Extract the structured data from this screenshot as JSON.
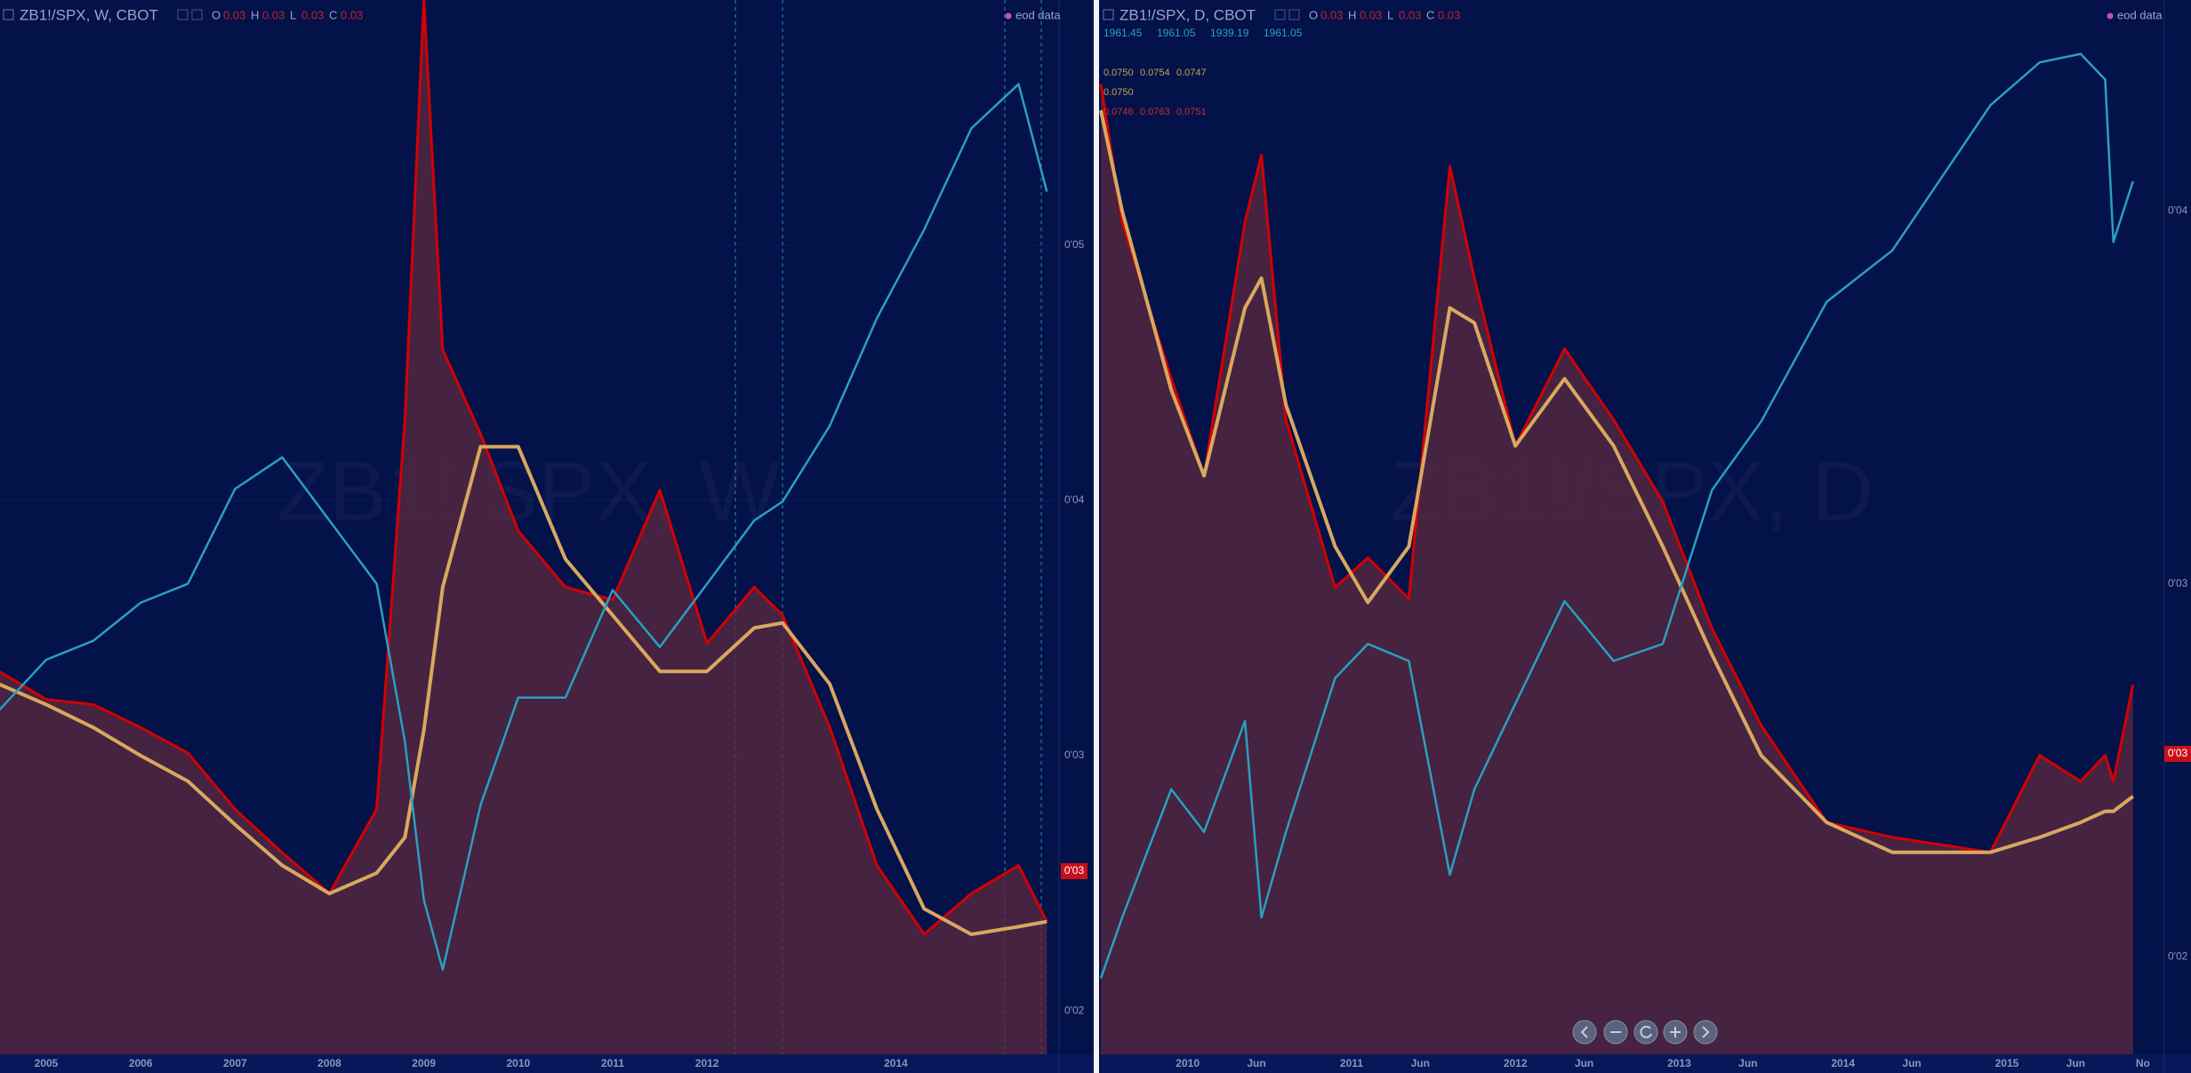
{
  "chart_data": [
    {
      "type": "line",
      "title": "ZB1!/SPX, W, CBOT",
      "watermark": "ZB1!/SPX, W",
      "source": "eod data",
      "ohlc_labels": [
        "O",
        "H",
        "L",
        "C"
      ],
      "ohlc_values": [
        0.03,
        0.03,
        0.03,
        0.03
      ],
      "last_label": "0'03",
      "x": [
        2004.5,
        2005,
        2005.5,
        2006,
        2006.5,
        2007,
        2007.5,
        2008,
        2008.5,
        2008.8,
        2009,
        2009.2,
        2009.6,
        2010,
        2010.5,
        2011,
        2011.5,
        2012,
        2012.5,
        2012.8,
        2013.3,
        2013.8,
        2014.3,
        2014.8,
        2015.3,
        2015.6
      ],
      "series": [
        {
          "color": "#d40000",
          "area": true,
          "values": [
            0.0333,
            0.0322,
            0.032,
            0.0311,
            0.0301,
            0.0279,
            0.0262,
            0.0246,
            0.0279,
            0.0432,
            0.0596,
            0.0459,
            0.0426,
            0.0388,
            0.0366,
            0.0361,
            0.0404,
            0.0344,
            0.0366,
            0.0355,
            0.0311,
            0.0257,
            0.023,
            0.0246,
            0.0257,
            0.0235
          ]
        },
        {
          "color": "#d8a860",
          "values": [
            0.0328,
            0.032,
            0.0311,
            0.03,
            0.029,
            0.0273,
            0.0257,
            0.0246,
            0.0254,
            0.0268,
            0.031,
            0.0366,
            0.0421,
            0.0421,
            0.0377,
            0.0355,
            0.0333,
            0.0333,
            0.035,
            0.0352,
            0.0328,
            0.0279,
            0.024,
            0.023,
            0.0233,
            0.0235
          ]
        },
        {
          "color": "#2a9fc0",
          "axis": "y2",
          "values": [
            1100,
            1180,
            1210,
            1270,
            1300,
            1450,
            1500,
            1400,
            1300,
            1050,
            800,
            690,
            950,
            1120,
            1120,
            1290,
            1200,
            1300,
            1400,
            1430,
            1550,
            1720,
            1860,
            2020,
            2090,
            1920
          ]
        }
      ],
      "xlim": [
        2004.51,
        2015.71
      ],
      "xticks": [
        2005,
        2006,
        2007,
        2008,
        2009,
        2010,
        2011,
        2012,
        2014
      ],
      "ylim": [
        0.0183,
        0.0596
      ],
      "yticks": [
        {
          "value": 0.05,
          "label": "0'05"
        },
        {
          "value": 0.04,
          "label": "0'04"
        },
        {
          "value": 0.03,
          "label": "0'03"
        },
        {
          "value": 0.02,
          "label": "0'02"
        }
      ],
      "y2lim": [
        556,
        2223
      ]
    },
    {
      "type": "line",
      "title": "ZB1!/SPX, D, CBOT",
      "watermark": "ZB1!/SPX, D",
      "source": "eod data",
      "ohlc_labels": [
        "O",
        "H",
        "L",
        "C"
      ],
      "ohlc_values": [
        0.03,
        0.03,
        0.03,
        0.03
      ],
      "last_label": "0'03",
      "spx_ohlc": [
        1961.45,
        1961.05,
        1939.19,
        1961.05
      ],
      "indicator_values": [
        [
          "0.0750",
          "0.0754",
          "0.0747"
        ],
        [
          "0.0750"
        ],
        [
          "0.0746",
          "0.0763",
          "0.0751"
        ]
      ],
      "x": [
        2009.47,
        2009.6,
        2009.9,
        2010.1,
        2010.35,
        2010.45,
        2010.6,
        2010.9,
        2011.1,
        2011.35,
        2011.6,
        2011.75,
        2012,
        2012.3,
        2012.6,
        2012.9,
        2013.2,
        2013.5,
        2013.9,
        2014.3,
        2014.9,
        2015.2,
        2015.45,
        2015.6,
        2015.65,
        2015.77
      ],
      "series": [
        {
          "color": "#d40000",
          "area": true,
          "values": [
            0.0434,
            0.0397,
            0.0355,
            0.0329,
            0.0397,
            0.0415,
            0.0344,
            0.0299,
            0.0307,
            0.0296,
            0.0412,
            0.0382,
            0.0337,
            0.0363,
            0.0344,
            0.0322,
            0.0288,
            0.0262,
            0.0236,
            0.0232,
            0.0228,
            0.0254,
            0.0247,
            0.0254,
            0.0247,
            0.0273
          ]
        },
        {
          "color": "#d8a860",
          "values": [
            0.0427,
            0.04,
            0.0352,
            0.0329,
            0.0374,
            0.0382,
            0.0348,
            0.031,
            0.0295,
            0.031,
            0.0374,
            0.037,
            0.0337,
            0.0355,
            0.0337,
            0.031,
            0.0281,
            0.0254,
            0.0236,
            0.0228,
            0.0228,
            0.0232,
            0.0236,
            0.0239,
            0.0239,
            0.0243
          ]
        },
        {
          "color": "#2a9fc0",
          "axis": "y2",
          "values": [
            1029,
            1100,
            1250,
            1200,
            1330,
            1100,
            1200,
            1380,
            1420,
            1400,
            1150,
            1250,
            1350,
            1470,
            1400,
            1420,
            1600,
            1680,
            1820,
            1880,
            2050,
            2100,
            2110,
            2080,
            1890,
            1961
          ]
        }
      ],
      "xlim": [
        2009.47,
        2015.95
      ],
      "xticks": [
        {
          "value": 2010,
          "label": "2010"
        },
        {
          "value": 2010.42,
          "label": "Jun"
        },
        {
          "value": 2011,
          "label": "2011"
        },
        {
          "value": 2011.42,
          "label": "Jun"
        },
        {
          "value": 2012,
          "label": "2012"
        },
        {
          "value": 2012.42,
          "label": "Jun"
        },
        {
          "value": 2013,
          "label": "2013"
        },
        {
          "value": 2013.42,
          "label": "Jun"
        },
        {
          "value": 2014,
          "label": "2014"
        },
        {
          "value": 2014.42,
          "label": "Jun"
        },
        {
          "value": 2015,
          "label": "2015"
        },
        {
          "value": 2015.42,
          "label": "Jun"
        },
        {
          "value": 2015.83,
          "label": "No"
        }
      ],
      "ylim": [
        0.01738,
        0.04566
      ],
      "yticks": [
        {
          "value": 0.04,
          "label": "0'04"
        },
        {
          "value": 0.03,
          "label": "0'03"
        },
        {
          "value": 0.02,
          "label": "0'02"
        }
      ],
      "y2lim": [
        940,
        2173
      ]
    }
  ]
}
